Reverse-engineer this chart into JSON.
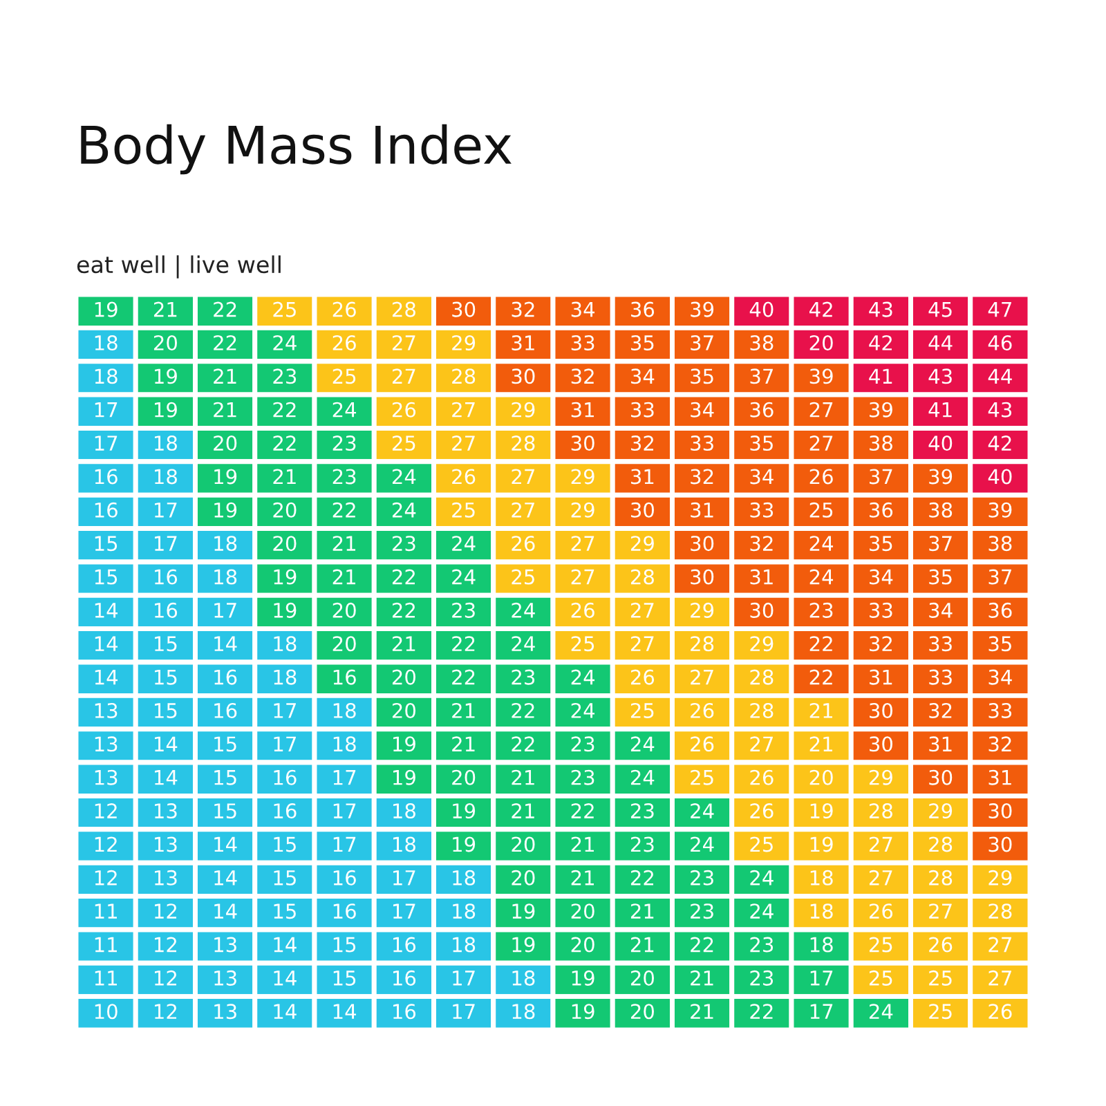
{
  "chart_data": {
    "type": "heatmap",
    "title": "Body Mass Index",
    "subtitle": "eat well | live well",
    "data_labels": true,
    "categories": [
      null,
      null,
      null,
      null,
      null,
      null,
      null,
      null,
      null,
      null,
      null,
      null,
      null,
      null,
      null,
      null
    ],
    "y_categories": [
      null,
      null,
      null,
      null,
      null,
      null,
      null,
      null,
      null,
      null,
      null,
      null,
      null,
      null,
      null,
      null,
      null,
      null,
      null,
      null,
      null,
      null
    ],
    "cells": [
      [
        19,
        21,
        22,
        25,
        26,
        28,
        30,
        32,
        34,
        36,
        39,
        40,
        42,
        43,
        45,
        47
      ],
      [
        18,
        20,
        22,
        24,
        26,
        27,
        29,
        31,
        33,
        35,
        37,
        38,
        20,
        42,
        44,
        46
      ],
      [
        18,
        19,
        21,
        23,
        25,
        27,
        28,
        30,
        32,
        34,
        35,
        37,
        39,
        41,
        43,
        44
      ],
      [
        17,
        19,
        21,
        22,
        24,
        26,
        27,
        29,
        31,
        33,
        34,
        36,
        27,
        39,
        41,
        43
      ],
      [
        17,
        18,
        20,
        22,
        23,
        25,
        27,
        28,
        30,
        32,
        33,
        35,
        27,
        38,
        40,
        42
      ],
      [
        16,
        18,
        19,
        21,
        23,
        24,
        26,
        27,
        29,
        31,
        32,
        34,
        26,
        37,
        39,
        40
      ],
      [
        16,
        17,
        19,
        20,
        22,
        24,
        25,
        27,
        29,
        30,
        31,
        33,
        25,
        36,
        38,
        39
      ],
      [
        15,
        17,
        18,
        20,
        21,
        23,
        24,
        26,
        27,
        29,
        30,
        32,
        24,
        35,
        37,
        38
      ],
      [
        15,
        16,
        18,
        19,
        21,
        22,
        24,
        25,
        27,
        28,
        30,
        31,
        24,
        34,
        35,
        37
      ],
      [
        14,
        16,
        17,
        19,
        20,
        22,
        23,
        24,
        26,
        27,
        29,
        30,
        23,
        33,
        34,
        36
      ],
      [
        14,
        15,
        14,
        18,
        20,
        21,
        22,
        24,
        25,
        27,
        28,
        29,
        22,
        32,
        33,
        35
      ],
      [
        14,
        15,
        16,
        18,
        16,
        20,
        22,
        23,
        24,
        26,
        27,
        28,
        22,
        31,
        33,
        34
      ],
      [
        13,
        15,
        16,
        17,
        18,
        20,
        21,
        22,
        24,
        25,
        26,
        28,
        21,
        30,
        32,
        33
      ],
      [
        13,
        14,
        15,
        17,
        18,
        19,
        21,
        22,
        23,
        24,
        26,
        27,
        21,
        30,
        31,
        32
      ],
      [
        13,
        14,
        15,
        16,
        17,
        19,
        20,
        21,
        23,
        24,
        25,
        26,
        20,
        29,
        30,
        31
      ],
      [
        12,
        13,
        15,
        16,
        17,
        18,
        19,
        21,
        22,
        23,
        24,
        26,
        19,
        28,
        29,
        30
      ],
      [
        12,
        13,
        14,
        15,
        17,
        18,
        19,
        20,
        21,
        23,
        24,
        25,
        19,
        27,
        28,
        30
      ],
      [
        12,
        13,
        14,
        15,
        16,
        17,
        18,
        20,
        21,
        22,
        23,
        24,
        18,
        27,
        28,
        29
      ],
      [
        11,
        12,
        14,
        15,
        16,
        17,
        18,
        19,
        20,
        21,
        23,
        24,
        18,
        26,
        27,
        28
      ],
      [
        11,
        12,
        13,
        14,
        15,
        16,
        18,
        19,
        20,
        21,
        22,
        23,
        18,
        25,
        26,
        27
      ],
      [
        11,
        12,
        13,
        14,
        15,
        16,
        17,
        18,
        19,
        20,
        21,
        23,
        17,
        25,
        25,
        27
      ],
      [
        10,
        12,
        13,
        14,
        14,
        16,
        17,
        18,
        19,
        20,
        21,
        22,
        17,
        24,
        25,
        26
      ]
    ],
    "colors": [
      [
        "#13c873",
        "#13c873",
        "#13c873",
        "#fcc419",
        "#fcc419",
        "#fcc419",
        "#f25c0c",
        "#f25c0c",
        "#f25c0c",
        "#f25c0c",
        "#f25c0c",
        "#e8114b",
        "#e8114b",
        "#e8114b",
        "#e8114b",
        "#e8114b"
      ],
      [
        "#29c5e6",
        "#13c873",
        "#13c873",
        "#13c873",
        "#fcc419",
        "#fcc419",
        "#fcc419",
        "#f25c0c",
        "#f25c0c",
        "#f25c0c",
        "#f25c0c",
        "#f25c0c",
        "#e8114b",
        "#e8114b",
        "#e8114b",
        "#e8114b"
      ],
      [
        "#29c5e6",
        "#13c873",
        "#13c873",
        "#13c873",
        "#fcc419",
        "#fcc419",
        "#fcc419",
        "#f25c0c",
        "#f25c0c",
        "#f25c0c",
        "#f25c0c",
        "#f25c0c",
        "#f25c0c",
        "#e8114b",
        "#e8114b",
        "#e8114b"
      ],
      [
        "#29c5e6",
        "#13c873",
        "#13c873",
        "#13c873",
        "#13c873",
        "#fcc419",
        "#fcc419",
        "#fcc419",
        "#f25c0c",
        "#f25c0c",
        "#f25c0c",
        "#f25c0c",
        "#f25c0c",
        "#f25c0c",
        "#e8114b",
        "#e8114b"
      ],
      [
        "#29c5e6",
        "#29c5e6",
        "#13c873",
        "#13c873",
        "#13c873",
        "#fcc419",
        "#fcc419",
        "#fcc419",
        "#f25c0c",
        "#f25c0c",
        "#f25c0c",
        "#f25c0c",
        "#f25c0c",
        "#f25c0c",
        "#e8114b",
        "#e8114b"
      ],
      [
        "#29c5e6",
        "#29c5e6",
        "#13c873",
        "#13c873",
        "#13c873",
        "#13c873",
        "#fcc419",
        "#fcc419",
        "#fcc419",
        "#f25c0c",
        "#f25c0c",
        "#f25c0c",
        "#f25c0c",
        "#f25c0c",
        "#f25c0c",
        "#e8114b"
      ],
      [
        "#29c5e6",
        "#29c5e6",
        "#13c873",
        "#13c873",
        "#13c873",
        "#13c873",
        "#fcc419",
        "#fcc419",
        "#fcc419",
        "#f25c0c",
        "#f25c0c",
        "#f25c0c",
        "#f25c0c",
        "#f25c0c",
        "#f25c0c",
        "#f25c0c"
      ],
      [
        "#29c5e6",
        "#29c5e6",
        "#29c5e6",
        "#13c873",
        "#13c873",
        "#13c873",
        "#13c873",
        "#fcc419",
        "#fcc419",
        "#fcc419",
        "#f25c0c",
        "#f25c0c",
        "#f25c0c",
        "#f25c0c",
        "#f25c0c",
        "#f25c0c"
      ],
      [
        "#29c5e6",
        "#29c5e6",
        "#29c5e6",
        "#13c873",
        "#13c873",
        "#13c873",
        "#13c873",
        "#fcc419",
        "#fcc419",
        "#fcc419",
        "#f25c0c",
        "#f25c0c",
        "#f25c0c",
        "#f25c0c",
        "#f25c0c",
        "#f25c0c"
      ],
      [
        "#29c5e6",
        "#29c5e6",
        "#29c5e6",
        "#13c873",
        "#13c873",
        "#13c873",
        "#13c873",
        "#13c873",
        "#fcc419",
        "#fcc419",
        "#fcc419",
        "#f25c0c",
        "#f25c0c",
        "#f25c0c",
        "#f25c0c",
        "#f25c0c"
      ],
      [
        "#29c5e6",
        "#29c5e6",
        "#29c5e6",
        "#29c5e6",
        "#13c873",
        "#13c873",
        "#13c873",
        "#13c873",
        "#fcc419",
        "#fcc419",
        "#fcc419",
        "#fcc419",
        "#f25c0c",
        "#f25c0c",
        "#f25c0c",
        "#f25c0c"
      ],
      [
        "#29c5e6",
        "#29c5e6",
        "#29c5e6",
        "#29c5e6",
        "#13c873",
        "#13c873",
        "#13c873",
        "#13c873",
        "#13c873",
        "#fcc419",
        "#fcc419",
        "#fcc419",
        "#f25c0c",
        "#f25c0c",
        "#f25c0c",
        "#f25c0c"
      ],
      [
        "#29c5e6",
        "#29c5e6",
        "#29c5e6",
        "#29c5e6",
        "#29c5e6",
        "#13c873",
        "#13c873",
        "#13c873",
        "#13c873",
        "#fcc419",
        "#fcc419",
        "#fcc419",
        "#fcc419",
        "#f25c0c",
        "#f25c0c",
        "#f25c0c"
      ],
      [
        "#29c5e6",
        "#29c5e6",
        "#29c5e6",
        "#29c5e6",
        "#29c5e6",
        "#13c873",
        "#13c873",
        "#13c873",
        "#13c873",
        "#13c873",
        "#fcc419",
        "#fcc419",
        "#fcc419",
        "#f25c0c",
        "#f25c0c",
        "#f25c0c"
      ],
      [
        "#29c5e6",
        "#29c5e6",
        "#29c5e6",
        "#29c5e6",
        "#29c5e6",
        "#13c873",
        "#13c873",
        "#13c873",
        "#13c873",
        "#13c873",
        "#fcc419",
        "#fcc419",
        "#fcc419",
        "#fcc419",
        "#f25c0c",
        "#f25c0c"
      ],
      [
        "#29c5e6",
        "#29c5e6",
        "#29c5e6",
        "#29c5e6",
        "#29c5e6",
        "#29c5e6",
        "#13c873",
        "#13c873",
        "#13c873",
        "#13c873",
        "#13c873",
        "#fcc419",
        "#fcc419",
        "#fcc419",
        "#fcc419",
        "#f25c0c"
      ],
      [
        "#29c5e6",
        "#29c5e6",
        "#29c5e6",
        "#29c5e6",
        "#29c5e6",
        "#29c5e6",
        "#13c873",
        "#13c873",
        "#13c873",
        "#13c873",
        "#13c873",
        "#fcc419",
        "#fcc419",
        "#fcc419",
        "#fcc419",
        "#f25c0c"
      ],
      [
        "#29c5e6",
        "#29c5e6",
        "#29c5e6",
        "#29c5e6",
        "#29c5e6",
        "#29c5e6",
        "#29c5e6",
        "#13c873",
        "#13c873",
        "#13c873",
        "#13c873",
        "#13c873",
        "#fcc419",
        "#fcc419",
        "#fcc419",
        "#fcc419"
      ],
      [
        "#29c5e6",
        "#29c5e6",
        "#29c5e6",
        "#29c5e6",
        "#29c5e6",
        "#29c5e6",
        "#29c5e6",
        "#13c873",
        "#13c873",
        "#13c873",
        "#13c873",
        "#13c873",
        "#fcc419",
        "#fcc419",
        "#fcc419",
        "#fcc419"
      ],
      [
        "#29c5e6",
        "#29c5e6",
        "#29c5e6",
        "#29c5e6",
        "#29c5e6",
        "#29c5e6",
        "#29c5e6",
        "#13c873",
        "#13c873",
        "#13c873",
        "#13c873",
        "#13c873",
        "#13c873",
        "#fcc419",
        "#fcc419",
        "#fcc419"
      ],
      [
        "#29c5e6",
        "#29c5e6",
        "#29c5e6",
        "#29c5e6",
        "#29c5e6",
        "#29c5e6",
        "#29c5e6",
        "#29c5e6",
        "#13c873",
        "#13c873",
        "#13c873",
        "#13c873",
        "#13c873",
        "#fcc419",
        "#fcc419",
        "#fcc419"
      ],
      [
        "#29c5e6",
        "#29c5e6",
        "#29c5e6",
        "#29c5e6",
        "#29c5e6",
        "#29c5e6",
        "#29c5e6",
        "#29c5e6",
        "#13c873",
        "#13c873",
        "#13c873",
        "#13c873",
        "#13c873",
        "#13c873",
        "#fcc419",
        "#fcc419"
      ]
    ]
  }
}
